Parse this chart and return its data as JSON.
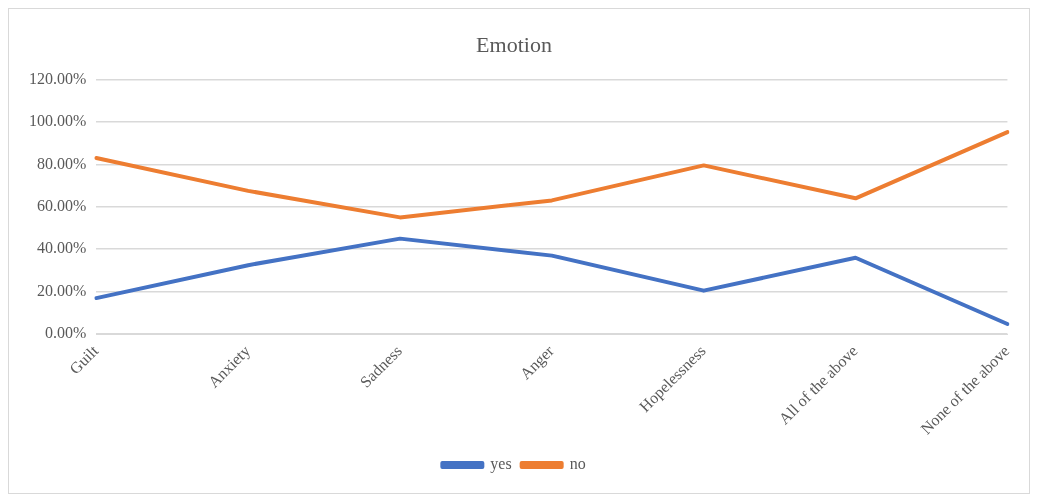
{
  "chart_data": {
    "type": "line",
    "title": "Emotion",
    "categories": [
      "Guilt",
      "Anxiety",
      "Sadness",
      "Anger",
      "Hopelessness",
      "All of the above",
      "None of the above"
    ],
    "series": [
      {
        "name": "yes",
        "color": "#4472c4",
        "values": [
          0.17,
          0.325,
          0.45,
          0.37,
          0.205,
          0.36,
          0.048
        ]
      },
      {
        "name": "no",
        "color": "#ed7d31",
        "values": [
          0.83,
          0.675,
          0.55,
          0.63,
          0.795,
          0.64,
          0.952
        ]
      }
    ],
    "ylim": [
      0,
      1.2
    ],
    "yticks": [
      {
        "value": 0,
        "label": "0.00%"
      },
      {
        "value": 0.2,
        "label": "20.00%"
      },
      {
        "value": 0.4,
        "label": "40.00%"
      },
      {
        "value": 0.6,
        "label": "60.00%"
      },
      {
        "value": 0.8,
        "label": "80.00%"
      },
      {
        "value": 1,
        "label": "100.00%"
      },
      {
        "value": 1.2,
        "label": "120.00%"
      }
    ],
    "grid": "y",
    "legend": "bottom",
    "marker": "none",
    "line_style": "solid"
  }
}
